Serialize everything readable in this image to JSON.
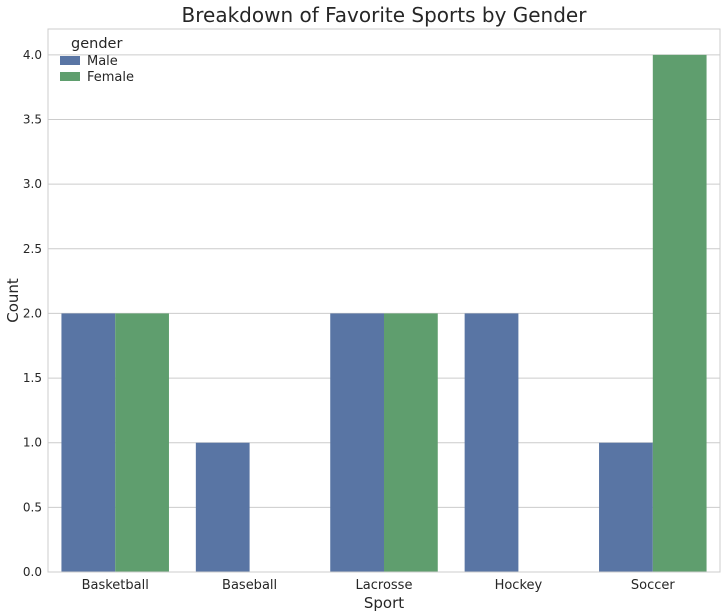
{
  "chart_data": {
    "type": "bar",
    "title": "Breakdown of Favorite Sports by Gender",
    "xlabel": "Sport",
    "ylabel": "Count",
    "categories": [
      "Basketball",
      "Baseball",
      "Lacrosse",
      "Hockey",
      "Soccer"
    ],
    "series": [
      {
        "name": "Male",
        "values": [
          2,
          1,
          2,
          2,
          1
        ],
        "color": "#5975a4"
      },
      {
        "name": "Female",
        "values": [
          2,
          0,
          2,
          0,
          4
        ],
        "color": "#5f9e6e"
      }
    ],
    "ylim": [
      0,
      4.2
    ],
    "yticks": [
      "0.0",
      "0.5",
      "1.0",
      "1.5",
      "2.0",
      "2.5",
      "3.0",
      "3.5",
      "4.0"
    ],
    "grid": true,
    "legend": {
      "title": "gender",
      "placement": "top-left"
    }
  }
}
